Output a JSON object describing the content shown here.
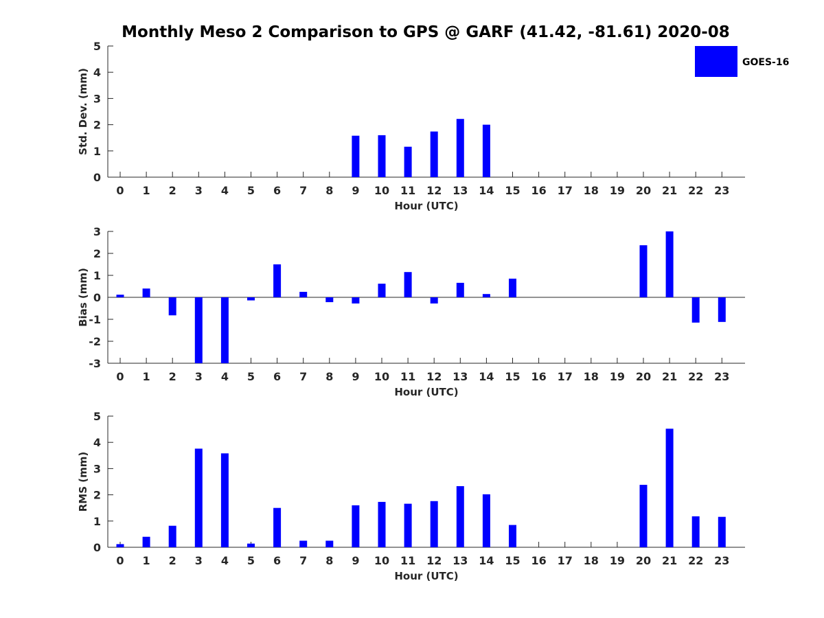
{
  "title": "Monthly Meso 2 Comparison to GPS @ GARF (41.42, -81.61) 2020-08",
  "colors": {
    "bar": "#0000ff",
    "axis": "#262626",
    "legend_border": "#ffffff"
  },
  "legend": {
    "label": "GOES-16",
    "placement": "top-right"
  },
  "chart_data": [
    {
      "type": "bar",
      "id": "std",
      "xlabel": "Hour (UTC)",
      "ylabel": "Std. Dev. (mm)",
      "ylim": [
        0,
        5
      ],
      "yticks": [
        0,
        1,
        2,
        3,
        4,
        5
      ],
      "categories": [
        "0",
        "1",
        "2",
        "3",
        "4",
        "5",
        "6",
        "7",
        "8",
        "9",
        "10",
        "11",
        "12",
        "13",
        "14",
        "15",
        "16",
        "17",
        "18",
        "19",
        "20",
        "21",
        "22",
        "23"
      ],
      "series": [
        {
          "name": "GOES-16",
          "values": [
            0,
            0,
            0,
            0,
            0,
            0,
            0,
            0,
            0,
            1.58,
            1.6,
            1.16,
            1.74,
            2.22,
            2.0,
            0,
            0,
            0,
            0,
            0,
            0,
            0,
            0,
            0
          ]
        }
      ]
    },
    {
      "type": "bar",
      "id": "bias",
      "xlabel": "Hour (UTC)",
      "ylabel": "Bias (mm)",
      "ylim": [
        -3,
        3
      ],
      "yticks": [
        -3,
        -2,
        -1,
        0,
        1,
        2,
        3
      ],
      "categories": [
        "0",
        "1",
        "2",
        "3",
        "4",
        "5",
        "6",
        "7",
        "8",
        "9",
        "10",
        "11",
        "12",
        "13",
        "14",
        "15",
        "16",
        "17",
        "18",
        "19",
        "20",
        "21",
        "22",
        "23"
      ],
      "series": [
        {
          "name": "GOES-16",
          "values": [
            0.12,
            0.4,
            -0.82,
            -3.0,
            -3.0,
            -0.14,
            1.5,
            0.25,
            -0.22,
            -0.28,
            0.62,
            1.15,
            -0.28,
            0.66,
            0.15,
            0.85,
            0,
            0,
            0,
            0,
            2.37,
            3.0,
            -1.15,
            -1.12
          ]
        }
      ]
    },
    {
      "type": "bar",
      "id": "rms",
      "xlabel": "Hour (UTC)",
      "ylabel": "RMS (mm)",
      "ylim": [
        0,
        5
      ],
      "yticks": [
        0,
        1,
        2,
        3,
        4,
        5
      ],
      "categories": [
        "0",
        "1",
        "2",
        "3",
        "4",
        "5",
        "6",
        "7",
        "8",
        "9",
        "10",
        "11",
        "12",
        "13",
        "14",
        "15",
        "16",
        "17",
        "18",
        "19",
        "20",
        "21",
        "22",
        "23"
      ],
      "series": [
        {
          "name": "GOES-16",
          "values": [
            0.12,
            0.4,
            0.82,
            3.76,
            3.58,
            0.14,
            1.5,
            0.25,
            0.25,
            1.6,
            1.73,
            1.66,
            1.76,
            2.33,
            2.02,
            0.85,
            0,
            0,
            0,
            0,
            2.38,
            4.52,
            1.18,
            1.16
          ]
        }
      ]
    }
  ]
}
